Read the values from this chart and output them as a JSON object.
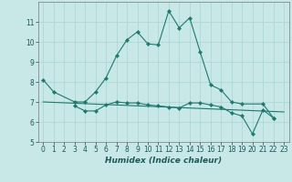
{
  "xlabel": "Humidex (Indice chaleur)",
  "x": [
    0,
    1,
    2,
    3,
    4,
    5,
    6,
    7,
    8,
    9,
    10,
    11,
    12,
    13,
    14,
    15,
    16,
    17,
    18,
    19,
    20,
    21,
    22,
    23
  ],
  "line1": [
    8.1,
    7.5,
    null,
    7.0,
    7.0,
    7.5,
    8.2,
    9.3,
    10.1,
    10.5,
    9.9,
    9.85,
    11.55,
    10.7,
    11.2,
    9.5,
    7.85,
    7.6,
    7.0,
    6.9,
    null,
    6.9,
    6.2,
    null
  ],
  "line2": [
    null,
    null,
    null,
    6.8,
    6.55,
    6.55,
    6.85,
    7.0,
    6.95,
    6.95,
    6.85,
    6.8,
    6.75,
    6.7,
    6.95,
    6.95,
    6.85,
    6.75,
    6.45,
    6.3,
    5.4,
    6.6,
    6.2,
    null
  ],
  "line3_x": [
    0,
    23
  ],
  "line3_y": [
    7.0,
    6.5
  ],
  "line_color": "#1a7a6e",
  "background_color": "#c8e8e8",
  "grid_color": "#aad4d4",
  "ylim": [
    5,
    12
  ],
  "xlim": [
    -0.5,
    23.5
  ],
  "yticks": [
    5,
    6,
    7,
    8,
    9,
    10,
    11
  ],
  "xticks": [
    0,
    1,
    2,
    3,
    4,
    5,
    6,
    7,
    8,
    9,
    10,
    11,
    12,
    13,
    14,
    15,
    16,
    17,
    18,
    19,
    20,
    21,
    22,
    23
  ],
  "xlabel_fontsize": 6.5,
  "tick_fontsize": 5.5
}
